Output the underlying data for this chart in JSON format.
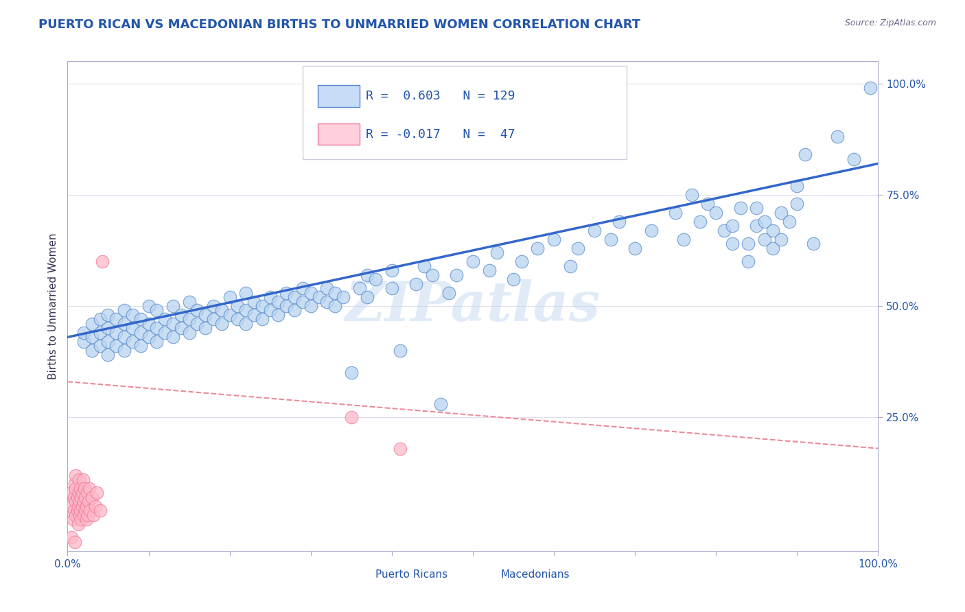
{
  "title": "PUERTO RICAN VS MACEDONIAN BIRTHS TO UNMARRIED WOMEN CORRELATION CHART",
  "source": "Source: ZipAtlas.com",
  "ylabel": "Births to Unmarried Women",
  "blue_R": 0.603,
  "blue_N": 129,
  "pink_R": -0.017,
  "pink_N": 47,
  "xlim": [
    0.0,
    1.0
  ],
  "ylim": [
    -0.05,
    1.05
  ],
  "xtick_positions": [
    0.0,
    0.1,
    0.2,
    0.3,
    0.4,
    0.5,
    0.6,
    0.7,
    0.8,
    0.9,
    1.0
  ],
  "ytick_labels": [
    "25.0%",
    "50.0%",
    "75.0%",
    "100.0%"
  ],
  "ytick_positions": [
    0.25,
    0.5,
    0.75,
    1.0
  ],
  "watermark": "ZIPatlas",
  "blue_color": "#b8d4f0",
  "blue_edge_color": "#5588cc",
  "pink_color": "#ffb8c8",
  "pink_edge_color": "#ee7799",
  "blue_line_color": "#3366cc",
  "pink_line_color": "#ee8899",
  "title_color": "#2255aa",
  "axis_color": "#aaaacc",
  "grid_color": "#ddddee",
  "legend_box_blue": "#c8dcf8",
  "legend_box_pink": "#ffd0dc",
  "blue_scatter": [
    [
      0.02,
      0.42
    ],
    [
      0.02,
      0.44
    ],
    [
      0.03,
      0.4
    ],
    [
      0.03,
      0.43
    ],
    [
      0.03,
      0.46
    ],
    [
      0.04,
      0.41
    ],
    [
      0.04,
      0.44
    ],
    [
      0.04,
      0.47
    ],
    [
      0.05,
      0.39
    ],
    [
      0.05,
      0.42
    ],
    [
      0.05,
      0.45
    ],
    [
      0.05,
      0.48
    ],
    [
      0.06,
      0.41
    ],
    [
      0.06,
      0.44
    ],
    [
      0.06,
      0.47
    ],
    [
      0.07,
      0.4
    ],
    [
      0.07,
      0.43
    ],
    [
      0.07,
      0.46
    ],
    [
      0.07,
      0.49
    ],
    [
      0.08,
      0.42
    ],
    [
      0.08,
      0.45
    ],
    [
      0.08,
      0.48
    ],
    [
      0.09,
      0.41
    ],
    [
      0.09,
      0.44
    ],
    [
      0.09,
      0.47
    ],
    [
      0.1,
      0.43
    ],
    [
      0.1,
      0.46
    ],
    [
      0.1,
      0.5
    ],
    [
      0.11,
      0.42
    ],
    [
      0.11,
      0.45
    ],
    [
      0.11,
      0.49
    ],
    [
      0.12,
      0.44
    ],
    [
      0.12,
      0.47
    ],
    [
      0.13,
      0.43
    ],
    [
      0.13,
      0.46
    ],
    [
      0.13,
      0.5
    ],
    [
      0.14,
      0.45
    ],
    [
      0.14,
      0.48
    ],
    [
      0.15,
      0.44
    ],
    [
      0.15,
      0.47
    ],
    [
      0.15,
      0.51
    ],
    [
      0.16,
      0.46
    ],
    [
      0.16,
      0.49
    ],
    [
      0.17,
      0.45
    ],
    [
      0.17,
      0.48
    ],
    [
      0.18,
      0.47
    ],
    [
      0.18,
      0.5
    ],
    [
      0.19,
      0.46
    ],
    [
      0.19,
      0.49
    ],
    [
      0.2,
      0.48
    ],
    [
      0.2,
      0.52
    ],
    [
      0.21,
      0.47
    ],
    [
      0.21,
      0.5
    ],
    [
      0.22,
      0.46
    ],
    [
      0.22,
      0.49
    ],
    [
      0.22,
      0.53
    ],
    [
      0.23,
      0.48
    ],
    [
      0.23,
      0.51
    ],
    [
      0.24,
      0.47
    ],
    [
      0.24,
      0.5
    ],
    [
      0.25,
      0.49
    ],
    [
      0.25,
      0.52
    ],
    [
      0.26,
      0.48
    ],
    [
      0.26,
      0.51
    ],
    [
      0.27,
      0.5
    ],
    [
      0.27,
      0.53
    ],
    [
      0.28,
      0.49
    ],
    [
      0.28,
      0.52
    ],
    [
      0.29,
      0.51
    ],
    [
      0.29,
      0.54
    ],
    [
      0.3,
      0.5
    ],
    [
      0.3,
      0.53
    ],
    [
      0.31,
      0.52
    ],
    [
      0.32,
      0.51
    ],
    [
      0.32,
      0.54
    ],
    [
      0.33,
      0.5
    ],
    [
      0.33,
      0.53
    ],
    [
      0.34,
      0.52
    ],
    [
      0.35,
      0.35
    ],
    [
      0.36,
      0.54
    ],
    [
      0.37,
      0.57
    ],
    [
      0.37,
      0.52
    ],
    [
      0.38,
      0.56
    ],
    [
      0.4,
      0.54
    ],
    [
      0.4,
      0.58
    ],
    [
      0.41,
      0.4
    ],
    [
      0.43,
      0.55
    ],
    [
      0.44,
      0.59
    ],
    [
      0.45,
      0.57
    ],
    [
      0.46,
      0.28
    ],
    [
      0.47,
      0.53
    ],
    [
      0.48,
      0.57
    ],
    [
      0.5,
      0.6
    ],
    [
      0.52,
      0.58
    ],
    [
      0.53,
      0.62
    ],
    [
      0.55,
      0.56
    ],
    [
      0.56,
      0.6
    ],
    [
      0.58,
      0.63
    ],
    [
      0.6,
      0.65
    ],
    [
      0.62,
      0.59
    ],
    [
      0.63,
      0.63
    ],
    [
      0.65,
      0.67
    ],
    [
      0.67,
      0.65
    ],
    [
      0.68,
      0.69
    ],
    [
      0.7,
      0.63
    ],
    [
      0.72,
      0.67
    ],
    [
      0.75,
      0.71
    ],
    [
      0.76,
      0.65
    ],
    [
      0.77,
      0.75
    ],
    [
      0.78,
      0.69
    ],
    [
      0.79,
      0.73
    ],
    [
      0.8,
      0.71
    ],
    [
      0.81,
      0.67
    ],
    [
      0.82,
      0.64
    ],
    [
      0.82,
      0.68
    ],
    [
      0.83,
      0.72
    ],
    [
      0.84,
      0.6
    ],
    [
      0.84,
      0.64
    ],
    [
      0.85,
      0.68
    ],
    [
      0.85,
      0.72
    ],
    [
      0.86,
      0.65
    ],
    [
      0.86,
      0.69
    ],
    [
      0.87,
      0.63
    ],
    [
      0.87,
      0.67
    ],
    [
      0.88,
      0.71
    ],
    [
      0.88,
      0.65
    ],
    [
      0.89,
      0.69
    ],
    [
      0.9,
      0.73
    ],
    [
      0.9,
      0.77
    ],
    [
      0.91,
      0.84
    ],
    [
      0.92,
      0.64
    ],
    [
      0.95,
      0.88
    ],
    [
      0.97,
      0.83
    ],
    [
      0.99,
      0.99
    ]
  ],
  "pink_scatter": [
    [
      0.005,
      0.05
    ],
    [
      0.005,
      0.08
    ],
    [
      0.007,
      0.02
    ],
    [
      0.008,
      0.04
    ],
    [
      0.008,
      0.07
    ],
    [
      0.009,
      0.1
    ],
    [
      0.01,
      0.03
    ],
    [
      0.01,
      0.06
    ],
    [
      0.01,
      0.09
    ],
    [
      0.01,
      0.12
    ],
    [
      0.012,
      0.04
    ],
    [
      0.012,
      0.07
    ],
    [
      0.013,
      0.01
    ],
    [
      0.013,
      0.05
    ],
    [
      0.014,
      0.08
    ],
    [
      0.014,
      0.11
    ],
    [
      0.015,
      0.03
    ],
    [
      0.015,
      0.06
    ],
    [
      0.016,
      0.09
    ],
    [
      0.016,
      0.04
    ],
    [
      0.017,
      0.07
    ],
    [
      0.017,
      0.02
    ],
    [
      0.018,
      0.05
    ],
    [
      0.018,
      0.08
    ],
    [
      0.019,
      0.11
    ],
    [
      0.02,
      0.03
    ],
    [
      0.02,
      0.06
    ],
    [
      0.021,
      0.09
    ],
    [
      0.022,
      0.04
    ],
    [
      0.022,
      0.07
    ],
    [
      0.023,
      0.02
    ],
    [
      0.023,
      0.05
    ],
    [
      0.024,
      0.08
    ],
    [
      0.025,
      0.03
    ],
    [
      0.026,
      0.06
    ],
    [
      0.027,
      0.09
    ],
    [
      0.028,
      0.04
    ],
    [
      0.03,
      0.07
    ],
    [
      0.032,
      0.03
    ],
    [
      0.034,
      0.05
    ],
    [
      0.036,
      0.08
    ],
    [
      0.04,
      0.04
    ],
    [
      0.043,
      0.6
    ],
    [
      0.35,
      0.25
    ],
    [
      0.41,
      0.18
    ],
    [
      0.005,
      -0.02
    ],
    [
      0.009,
      -0.03
    ]
  ],
  "blue_line_x": [
    0.0,
    1.0
  ],
  "blue_line_y": [
    0.43,
    0.82
  ],
  "pink_line_x": [
    0.0,
    1.0
  ],
  "pink_line_y": [
    0.33,
    0.18
  ]
}
